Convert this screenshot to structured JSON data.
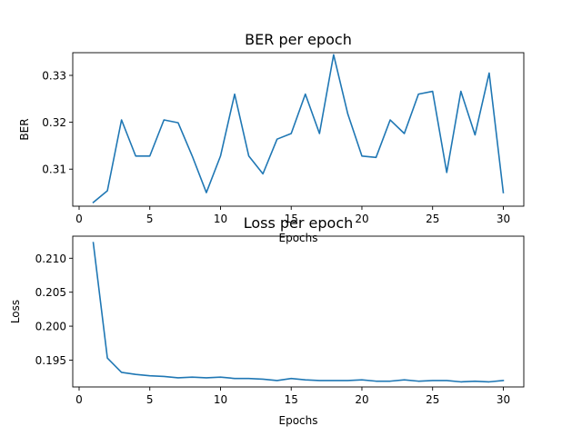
{
  "colors": {
    "series": "#1f77b4"
  },
  "chart_data": [
    {
      "type": "line",
      "title": "BER per epoch",
      "xlabel": "Epochs",
      "ylabel": "BER",
      "xlim": [
        -0.45,
        31.45
      ],
      "ylim": [
        0.3021,
        0.33484
      ],
      "xticks": [
        0,
        5,
        10,
        15,
        20,
        25,
        30
      ],
      "xtick_labels": [
        "0",
        "5",
        "10",
        "15",
        "20",
        "25",
        "30"
      ],
      "yticks": [
        0.31,
        0.32,
        0.33
      ],
      "ytick_labels": [
        "0.31",
        "0.32",
        "0.33"
      ],
      "grid": false,
      "x": [
        1,
        2,
        3,
        4,
        5,
        6,
        7,
        8,
        9,
        10,
        11,
        12,
        13,
        14,
        15,
        16,
        17,
        18,
        19,
        20,
        21,
        22,
        23,
        24,
        25,
        26,
        27,
        28,
        29,
        30
      ],
      "series": [
        {
          "values": [
            0.3029,
            0.3054,
            0.3205,
            0.3128,
            0.3128,
            0.3205,
            0.3199,
            0.3128,
            0.305,
            0.3128,
            0.326,
            0.3128,
            0.309,
            0.3164,
            0.3176,
            0.326,
            0.3176,
            0.3344,
            0.3218,
            0.3128,
            0.3125,
            0.3205,
            0.3176,
            0.326,
            0.3266,
            0.3093,
            0.3266,
            0.3173,
            0.3305,
            0.305
          ]
        }
      ]
    },
    {
      "type": "line",
      "title": "Loss per epoch",
      "xlabel": "Epochs",
      "ylabel": "Loss",
      "xlim": [
        -0.45,
        31.45
      ],
      "ylim": [
        0.19105,
        0.21325
      ],
      "xticks": [
        0,
        5,
        10,
        15,
        20,
        25,
        30
      ],
      "xtick_labels": [
        "0",
        "5",
        "10",
        "15",
        "20",
        "25",
        "30"
      ],
      "yticks": [
        0.195,
        0.2,
        0.205,
        0.21
      ],
      "ytick_labels": [
        "0.195",
        "0.200",
        "0.205",
        "0.210"
      ],
      "grid": false,
      "x": [
        1,
        2,
        3,
        4,
        5,
        6,
        7,
        8,
        9,
        10,
        11,
        12,
        13,
        14,
        15,
        16,
        17,
        18,
        19,
        20,
        21,
        22,
        23,
        24,
        25,
        26,
        27,
        28,
        29,
        30
      ],
      "series": [
        {
          "values": [
            0.2123,
            0.1953,
            0.1932,
            0.1929,
            0.1927,
            0.1926,
            0.1924,
            0.1925,
            0.1924,
            0.1925,
            0.1923,
            0.1923,
            0.1922,
            0.192,
            0.1923,
            0.1921,
            0.192,
            0.192,
            0.192,
            0.1921,
            0.1919,
            0.1919,
            0.1921,
            0.1919,
            0.192,
            0.192,
            0.1918,
            0.1919,
            0.1918,
            0.192
          ]
        }
      ]
    }
  ]
}
